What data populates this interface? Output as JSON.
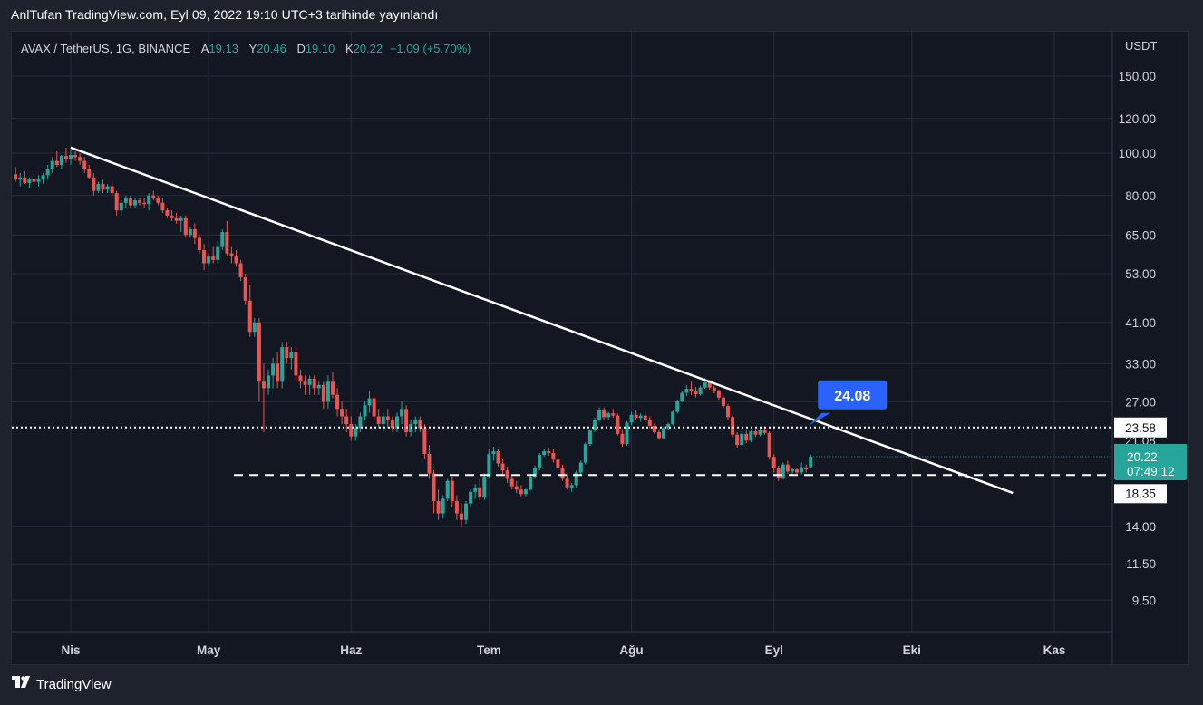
{
  "header": {
    "publication_text": "AnlTufan TradingView.com, Eyl 09, 2022 19:10 UTC+3 tarihinde yayınlandı"
  },
  "legend": {
    "symbol": "AVAX / TetherUS, 1G, BINANCE",
    "open_label": "A",
    "open": "19.13",
    "high_label": "Y",
    "high": "20.46",
    "low_label": "D",
    "low": "19.10",
    "close_label": "K",
    "close": "20.22",
    "change": "+1.09 (+5.70%)"
  },
  "footer": {
    "brand": "TradingView",
    "logo_icon": "tradingview-logo-icon"
  },
  "colors": {
    "background": "#131722",
    "outer_background": "#1e222d",
    "grid": "#2a2e39",
    "up": "#26a69a",
    "down": "#ef5350",
    "text": "#d1d4dc",
    "callout": "#2962ff"
  },
  "chart_data": {
    "type": "candlestick",
    "y_scale": "log",
    "y_unit": "USDT",
    "y_ticks": [
      150.0,
      120.0,
      100.0,
      80.0,
      65.0,
      53.0,
      41.0,
      33.0,
      27.0,
      14.0,
      11.5,
      9.5
    ],
    "x_ticks": [
      "Nis",
      "May",
      "Haz",
      "Tem",
      "Ağu",
      "Eyl",
      "Eki",
      "Kas"
    ],
    "x_tick_dates": [
      "2022-04-01",
      "2022-05-01",
      "2022-06-01",
      "2022-07-01",
      "2022-08-01",
      "2022-09-01",
      "2022-10-01",
      "2022-11-01"
    ],
    "price_labels": {
      "dotted_level": "23.58",
      "current_price": "20.22",
      "countdown": "07:49:12",
      "dashed_level": "18.35",
      "hidden_label_partial": "21.08"
    },
    "horizontal_lines": [
      {
        "price": 23.58,
        "style": "dotted",
        "color": "#ffffff"
      },
      {
        "price": 18.35,
        "style": "dashed",
        "color": "#ffffff"
      }
    ],
    "trendline": {
      "start": {
        "date": "2022-04-01",
        "price": 103
      },
      "end": {
        "date": "2022-10-23",
        "price": 16.7
      },
      "color": "#ffffff"
    },
    "callout": {
      "text": "24.08",
      "date": "2022-09-09",
      "price": 23.58
    },
    "candles": [
      [
        "2022-03-20",
        89.5,
        93.0,
        86.0,
        87.0
      ],
      [
        "2022-03-21",
        87.0,
        90.0,
        84.0,
        88.0
      ],
      [
        "2022-03-22",
        88.0,
        91.0,
        85.0,
        85.5
      ],
      [
        "2022-03-23",
        85.5,
        88.0,
        83.0,
        87.5
      ],
      [
        "2022-03-24",
        87.5,
        90.0,
        85.0,
        86.0
      ],
      [
        "2022-03-25",
        86.0,
        89.0,
        84.0,
        87.0
      ],
      [
        "2022-03-26",
        87.0,
        90.0,
        85.0,
        89.0
      ],
      [
        "2022-03-27",
        89.0,
        94.0,
        87.0,
        92.0
      ],
      [
        "2022-03-28",
        92.0,
        98.0,
        90.0,
        96.0
      ],
      [
        "2022-03-29",
        96.0,
        101.0,
        93.0,
        94.0
      ],
      [
        "2022-03-30",
        94.0,
        99.0,
        92.0,
        98.5
      ],
      [
        "2022-03-31",
        98.5,
        103.0,
        95.0,
        97.0
      ],
      [
        "2022-04-01",
        97.0,
        102.0,
        94.0,
        99.0
      ],
      [
        "2022-04-02",
        99.0,
        101.0,
        96.0,
        98.0
      ],
      [
        "2022-04-03",
        98.0,
        100.0,
        94.0,
        96.0
      ],
      [
        "2022-04-04",
        96.0,
        98.0,
        90.0,
        92.0
      ],
      [
        "2022-04-05",
        92.0,
        94.0,
        87.0,
        88.0
      ],
      [
        "2022-04-06",
        88.0,
        90.0,
        80.0,
        82.0
      ],
      [
        "2022-04-07",
        82.0,
        86.0,
        81.0,
        85.0
      ],
      [
        "2022-04-08",
        85.0,
        87.0,
        81.0,
        82.5
      ],
      [
        "2022-04-09",
        82.5,
        85.0,
        81.0,
        84.0
      ],
      [
        "2022-04-10",
        84.0,
        86.0,
        80.0,
        81.0
      ],
      [
        "2022-04-11",
        81.0,
        82.0,
        72.0,
        74.0
      ],
      [
        "2022-04-12",
        74.0,
        78.0,
        72.0,
        77.0
      ],
      [
        "2022-04-13",
        77.0,
        80.0,
        75.0,
        79.0
      ],
      [
        "2022-04-14",
        79.0,
        80.0,
        75.0,
        76.0
      ],
      [
        "2022-04-15",
        76.0,
        79.0,
        75.0,
        78.0
      ],
      [
        "2022-04-16",
        78.0,
        79.0,
        76.0,
        77.0
      ],
      [
        "2022-04-17",
        77.0,
        79.0,
        75.0,
        76.5
      ],
      [
        "2022-04-18",
        76.5,
        81.0,
        74.0,
        80.0
      ],
      [
        "2022-04-19",
        80.0,
        82.0,
        78.0,
        79.0
      ],
      [
        "2022-04-20",
        79.0,
        80.0,
        76.0,
        77.0
      ],
      [
        "2022-04-21",
        77.0,
        79.0,
        73.0,
        74.0
      ],
      [
        "2022-04-22",
        74.0,
        75.0,
        71.0,
        72.0
      ],
      [
        "2022-04-23",
        72.0,
        74.0,
        70.0,
        71.0
      ],
      [
        "2022-04-24",
        71.0,
        73.0,
        69.0,
        70.0
      ],
      [
        "2022-04-25",
        70.0,
        72.0,
        66.0,
        71.0
      ],
      [
        "2022-04-26",
        71.0,
        72.0,
        64.0,
        65.0
      ],
      [
        "2022-04-27",
        65.0,
        68.0,
        64.0,
        67.0
      ],
      [
        "2022-04-28",
        67.0,
        69.0,
        62.0,
        64.0
      ],
      [
        "2022-04-29",
        64.0,
        65.0,
        59.0,
        60.0
      ],
      [
        "2022-04-30",
        60.0,
        62.0,
        54.0,
        56.0
      ],
      [
        "2022-05-01",
        56.0,
        59.0,
        55.0,
        58.0
      ],
      [
        "2022-05-02",
        58.0,
        61.0,
        56.0,
        57.0
      ],
      [
        "2022-05-03",
        57.0,
        63.0,
        56.0,
        61.0
      ],
      [
        "2022-05-04",
        61.0,
        67.0,
        60.0,
        66.0
      ],
      [
        "2022-05-05",
        66.0,
        70.0,
        58.0,
        59.0
      ],
      [
        "2022-05-06",
        59.0,
        61.0,
        56.0,
        58.0
      ],
      [
        "2022-05-07",
        58.0,
        60.0,
        55.0,
        56.0
      ],
      [
        "2022-05-08",
        56.0,
        57.0,
        51.0,
        52.0
      ],
      [
        "2022-05-09",
        52.0,
        53.0,
        45.0,
        46.0
      ],
      [
        "2022-05-10",
        46.0,
        50.0,
        38.0,
        39.0
      ],
      [
        "2022-05-11",
        39.0,
        42.0,
        38.0,
        41.0
      ],
      [
        "2022-05-12",
        41.0,
        42.0,
        27.0,
        30.0
      ],
      [
        "2022-05-13",
        30.0,
        33.0,
        23.0,
        29.0
      ],
      [
        "2022-05-14",
        29.0,
        32.0,
        28.0,
        31.0
      ],
      [
        "2022-05-15",
        31.0,
        34.0,
        29.0,
        33.0
      ],
      [
        "2022-05-16",
        33.0,
        35.0,
        29.0,
        30.0
      ],
      [
        "2022-05-17",
        30.0,
        37.0,
        29.0,
        36.0
      ],
      [
        "2022-05-18",
        36.0,
        37.0,
        33.0,
        34.0
      ],
      [
        "2022-05-19",
        34.0,
        36.0,
        32.0,
        35.0
      ],
      [
        "2022-05-20",
        35.0,
        36.0,
        30.0,
        31.0
      ],
      [
        "2022-05-21",
        31.0,
        32.0,
        29.0,
        30.0
      ],
      [
        "2022-05-22",
        30.0,
        31.0,
        28.0,
        29.5
      ],
      [
        "2022-05-23",
        29.5,
        31.0,
        28.0,
        30.5
      ],
      [
        "2022-05-24",
        30.5,
        31.0,
        28.0,
        29.0
      ],
      [
        "2022-05-25",
        29.0,
        30.0,
        28.0,
        29.5
      ],
      [
        "2022-05-26",
        29.5,
        30.0,
        26.0,
        27.0
      ],
      [
        "2022-05-27",
        27.0,
        31.0,
        26.0,
        30.0
      ],
      [
        "2022-05-28",
        30.0,
        31.5,
        27.5,
        28.0
      ],
      [
        "2022-05-29",
        28.0,
        29.0,
        25.0,
        26.0
      ],
      [
        "2022-05-30",
        26.0,
        27.0,
        24.0,
        25.0
      ],
      [
        "2022-05-31",
        25.0,
        26.0,
        23.0,
        24.0
      ],
      [
        "2022-06-01",
        24.0,
        25.0,
        22.0,
        22.5
      ],
      [
        "2022-06-02",
        22.5,
        24.0,
        22.0,
        23.5
      ],
      [
        "2022-06-03",
        23.5,
        25.5,
        23.0,
        25.0
      ],
      [
        "2022-06-04",
        25.0,
        27.0,
        24.5,
        26.5
      ],
      [
        "2022-06-05",
        26.5,
        28.5,
        25.5,
        27.5
      ],
      [
        "2022-06-06",
        27.5,
        28.0,
        24.5,
        25.0
      ],
      [
        "2022-06-07",
        25.0,
        26.0,
        23.5,
        24.0
      ],
      [
        "2022-06-08",
        24.0,
        25.5,
        23.0,
        25.0
      ],
      [
        "2022-06-09",
        25.0,
        26.0,
        23.5,
        24.5
      ],
      [
        "2022-06-10",
        24.5,
        25.0,
        23.0,
        23.5
      ],
      [
        "2022-06-11",
        23.5,
        25.5,
        23.0,
        25.0
      ],
      [
        "2022-06-12",
        25.0,
        27.0,
        24.0,
        26.0
      ],
      [
        "2022-06-13",
        26.0,
        26.5,
        22.5,
        23.0
      ],
      [
        "2022-06-14",
        23.0,
        24.5,
        22.5,
        24.0
      ],
      [
        "2022-06-15",
        24.0,
        25.0,
        23.0,
        24.5
      ],
      [
        "2022-06-16",
        24.5,
        25.0,
        23.0,
        23.5
      ],
      [
        "2022-06-17",
        23.5,
        24.0,
        20.0,
        20.5
      ],
      [
        "2022-06-18",
        20.5,
        21.5,
        18.0,
        18.5
      ],
      [
        "2022-06-19",
        18.5,
        18.8,
        15.0,
        16.0
      ],
      [
        "2022-06-20",
        16.0,
        17.0,
        14.5,
        15.0
      ],
      [
        "2022-06-21",
        15.0,
        16.5,
        14.6,
        16.2
      ],
      [
        "2022-06-22",
        16.2,
        18.0,
        16.0,
        17.8
      ],
      [
        "2022-06-23",
        17.8,
        18.2,
        15.5,
        16.0
      ],
      [
        "2022-06-24",
        16.0,
        16.5,
        14.5,
        15.0
      ],
      [
        "2022-06-25",
        15.0,
        15.8,
        13.9,
        14.5
      ],
      [
        "2022-06-26",
        14.5,
        16.0,
        14.2,
        15.8
      ],
      [
        "2022-06-27",
        15.8,
        17.0,
        15.5,
        16.8
      ],
      [
        "2022-06-28",
        16.8,
        17.5,
        16.2,
        17.2
      ],
      [
        "2022-06-29",
        17.2,
        18.0,
        16.0,
        16.3
      ],
      [
        "2022-06-30",
        16.3,
        18.5,
        16.1,
        18.2
      ],
      [
        "2022-07-01",
        18.2,
        21.0,
        18.0,
        20.5
      ],
      [
        "2022-07-02",
        20.5,
        21.3,
        19.8,
        20.8
      ],
      [
        "2022-07-03",
        20.8,
        21.1,
        19.2,
        19.5
      ],
      [
        "2022-07-04",
        19.5,
        20.0,
        18.4,
        18.8
      ],
      [
        "2022-07-05",
        18.8,
        19.2,
        17.6,
        18.0
      ],
      [
        "2022-07-06",
        18.0,
        18.4,
        17.0,
        17.3
      ],
      [
        "2022-07-07",
        17.3,
        17.8,
        16.7,
        17.0
      ],
      [
        "2022-07-08",
        17.0,
        17.4,
        16.4,
        16.6
      ],
      [
        "2022-07-09",
        16.6,
        17.2,
        16.4,
        17.0
      ],
      [
        "2022-07-10",
        17.0,
        18.4,
        16.9,
        18.2
      ],
      [
        "2022-07-11",
        18.2,
        19.3,
        18.0,
        19.0
      ],
      [
        "2022-07-12",
        19.0,
        20.6,
        18.8,
        20.4
      ],
      [
        "2022-07-13",
        20.4,
        21.1,
        20.2,
        20.8
      ],
      [
        "2022-07-14",
        20.8,
        21.2,
        20.3,
        20.6
      ],
      [
        "2022-07-15",
        20.6,
        21.1,
        19.6,
        19.9
      ],
      [
        "2022-07-16",
        19.9,
        20.2,
        18.9,
        19.1
      ],
      [
        "2022-07-17",
        19.1,
        19.4,
        17.8,
        18.0
      ],
      [
        "2022-07-18",
        18.0,
        18.4,
        17.0,
        17.2
      ],
      [
        "2022-07-19",
        17.2,
        17.6,
        16.8,
        17.4
      ],
      [
        "2022-07-20",
        17.4,
        18.8,
        17.2,
        18.6
      ],
      [
        "2022-07-21",
        18.6,
        19.8,
        18.4,
        19.6
      ],
      [
        "2022-07-22",
        19.6,
        21.8,
        19.4,
        21.6
      ],
      [
        "2022-07-23",
        21.6,
        23.4,
        21.4,
        23.2
      ],
      [
        "2022-07-24",
        23.2,
        24.8,
        23.0,
        24.6
      ],
      [
        "2022-07-25",
        24.6,
        26.2,
        24.3,
        25.9
      ],
      [
        "2022-07-26",
        25.9,
        26.2,
        24.6,
        24.9
      ],
      [
        "2022-07-27",
        24.9,
        25.6,
        24.5,
        25.4
      ],
      [
        "2022-07-28",
        25.4,
        26.0,
        24.8,
        25.1
      ],
      [
        "2022-07-29",
        25.1,
        25.4,
        22.6,
        22.8
      ],
      [
        "2022-07-30",
        22.8,
        23.4,
        21.3,
        21.6
      ],
      [
        "2022-07-31",
        21.6,
        24.4,
        21.4,
        24.2
      ],
      [
        "2022-08-01",
        24.2,
        25.6,
        23.9,
        25.2
      ],
      [
        "2022-08-02",
        25.2,
        25.9,
        24.5,
        24.8
      ],
      [
        "2022-08-03",
        24.8,
        25.4,
        24.3,
        25.1
      ],
      [
        "2022-08-04",
        25.1,
        25.6,
        24.3,
        24.6
      ],
      [
        "2022-08-05",
        24.6,
        25.0,
        23.5,
        23.8
      ],
      [
        "2022-08-06",
        23.8,
        24.1,
        22.8,
        23.0
      ],
      [
        "2022-08-07",
        23.0,
        23.4,
        22.1,
        22.3
      ],
      [
        "2022-08-08",
        22.3,
        23.7,
        22.1,
        23.5
      ],
      [
        "2022-08-09",
        23.5,
        24.2,
        23.3,
        24.0
      ],
      [
        "2022-08-10",
        24.0,
        25.8,
        23.8,
        25.6
      ],
      [
        "2022-08-11",
        25.6,
        27.3,
        25.4,
        27.1
      ],
      [
        "2022-08-12",
        27.1,
        28.6,
        26.9,
        28.3
      ],
      [
        "2022-08-13",
        28.3,
        29.5,
        27.8,
        28.9
      ],
      [
        "2022-08-14",
        28.9,
        30.0,
        28.0,
        28.6
      ],
      [
        "2022-08-15",
        28.6,
        29.2,
        27.6,
        28.1
      ],
      [
        "2022-08-16",
        28.1,
        29.4,
        27.9,
        29.1
      ],
      [
        "2022-08-17",
        29.1,
        30.6,
        28.9,
        29.9
      ],
      [
        "2022-08-18",
        29.9,
        30.3,
        28.8,
        29.1
      ],
      [
        "2022-08-19",
        29.1,
        29.4,
        28.2,
        28.5
      ],
      [
        "2022-08-20",
        28.5,
        28.8,
        27.3,
        27.6
      ],
      [
        "2022-08-21",
        27.6,
        27.9,
        26.1,
        26.4
      ],
      [
        "2022-08-22",
        26.4,
        26.7,
        24.6,
        24.9
      ],
      [
        "2022-08-23",
        24.9,
        25.1,
        22.4,
        22.7
      ],
      [
        "2022-08-24",
        22.7,
        23.0,
        21.2,
        21.5
      ],
      [
        "2022-08-25",
        21.5,
        23.1,
        21.4,
        22.8
      ],
      [
        "2022-08-26",
        22.8,
        23.2,
        21.7,
        22.0
      ],
      [
        "2022-08-27",
        22.0,
        23.3,
        21.8,
        23.1
      ],
      [
        "2022-08-28",
        23.1,
        23.4,
        22.4,
        22.7
      ],
      [
        "2022-08-29",
        22.7,
        23.6,
        22.5,
        23.3
      ],
      [
        "2022-08-30",
        23.3,
        23.6,
        22.7,
        22.9
      ],
      [
        "2022-08-31",
        22.9,
        23.1,
        19.9,
        20.2
      ],
      [
        "2022-09-01",
        20.2,
        20.5,
        18.6,
        19.0
      ],
      [
        "2022-09-02",
        19.0,
        19.3,
        17.8,
        18.1
      ],
      [
        "2022-09-03",
        18.1,
        19.6,
        17.9,
        19.4
      ],
      [
        "2022-09-04",
        19.4,
        19.8,
        18.5,
        18.7
      ],
      [
        "2022-09-05",
        18.7,
        19.1,
        18.4,
        18.9
      ],
      [
        "2022-09-06",
        18.9,
        19.1,
        18.3,
        18.6
      ],
      [
        "2022-09-07",
        18.6,
        19.6,
        18.4,
        19.1
      ],
      [
        "2022-09-08",
        19.1,
        19.4,
        18.6,
        18.9
      ],
      [
        "2022-09-09",
        19.13,
        20.46,
        19.1,
        20.22
      ]
    ]
  }
}
